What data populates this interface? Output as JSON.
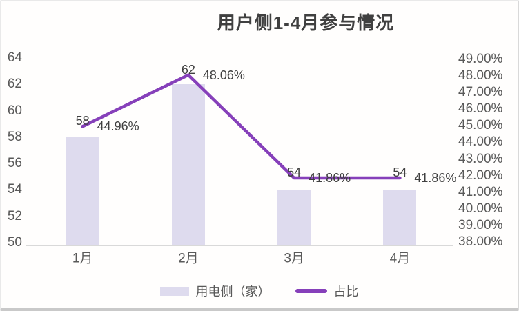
{
  "chart_data": {
    "type": "bar+line combo",
    "title": "用户侧1-4月参与情况",
    "categories": [
      "1月",
      "2月",
      "3月",
      "4月"
    ],
    "series": [
      {
        "name": "用电侧（家）",
        "type": "bar",
        "axis": "left",
        "values": [
          58,
          62,
          54,
          54
        ],
        "labels": [
          "58",
          "62",
          "54",
          "54"
        ],
        "color": "#dedbee"
      },
      {
        "name": "占比",
        "type": "line",
        "axis": "right",
        "values": [
          44.96,
          48.06,
          41.86,
          41.86
        ],
        "labels": [
          "44.96%",
          "48.06%",
          "41.86%",
          "41.86%"
        ],
        "color": "#8640ba"
      }
    ],
    "left_axis": {
      "min": 50,
      "max": 64,
      "step": 2,
      "ticks": [
        "64",
        "62",
        "60",
        "58",
        "56",
        "54",
        "52",
        "50"
      ]
    },
    "right_axis": {
      "min": 38,
      "max": 49,
      "step": 1,
      "ticks": [
        "49.00%",
        "48.00%",
        "47.00%",
        "46.00%",
        "45.00%",
        "44.00%",
        "43.00%",
        "42.00%",
        "41.00%",
        "40.00%",
        "39.00%",
        "38.00%"
      ]
    },
    "legend": [
      {
        "label": "用电侧（家）",
        "type": "bar"
      },
      {
        "label": "占比",
        "type": "line"
      }
    ],
    "grid": false,
    "legend_position": "bottom",
    "text_colors": {
      "title": "#404040",
      "ticks": "#595959",
      "data_labels": "#404040"
    },
    "axis_line_color": "#d9d9d9"
  }
}
